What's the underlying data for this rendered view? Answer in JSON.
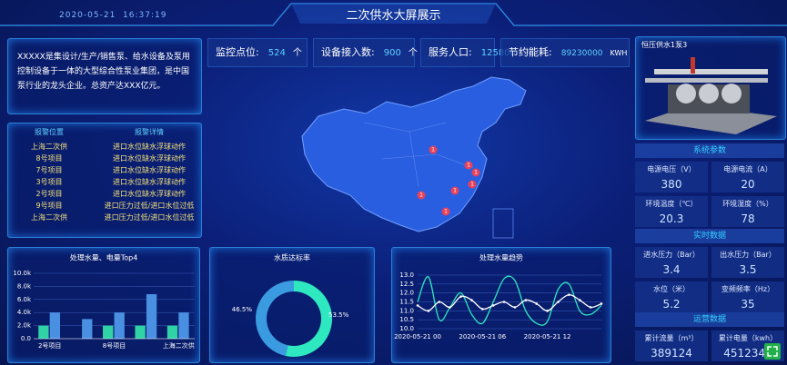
{
  "header": {
    "date": "2020-05-21",
    "time": "16:37:19",
    "title": "二次供水大屏展示"
  },
  "intro": "XXXXX是集设计/生产/销售泵、给水设备及泵用控制设备于一体的大型综合性泵业集团，是中国泵行业的龙头企业。总资产达XXX亿元。",
  "stats": [
    {
      "label": "监控点位:",
      "value": 524,
      "unit": "个"
    },
    {
      "label": "设备接入数:",
      "value": 900,
      "unit": "个"
    },
    {
      "label": "服务人口:",
      "value": 125800,
      "unit": "人"
    },
    {
      "label": "节约能耗:",
      "value": 89230000,
      "unit": "KWH"
    }
  ],
  "alarms": {
    "columns": [
      "报警位置",
      "报警详情"
    ],
    "rows": [
      [
        "上海二次供",
        "进口水位缺水浮球动作"
      ],
      [
        "8号项目",
        "进口水位缺水浮球动作"
      ],
      [
        "7号项目",
        "进口水位缺水浮球动作"
      ],
      [
        "3号项目",
        "进口水位缺水浮球动作"
      ],
      [
        "2号项目",
        "进口水位缺水浮球动作"
      ],
      [
        "9号项目",
        "进口压力过低/进口水位过低"
      ],
      [
        "上海二次供",
        "进口压力过低/进口水位过低"
      ]
    ]
  },
  "map_markers": [
    "1",
    "1",
    "1",
    "1",
    "1",
    "1",
    "1"
  ],
  "device": {
    "name": "恒压供水1泵3"
  },
  "sections": [
    {
      "title": "系统参数",
      "items": [
        {
          "label": "电源电压（V）",
          "value": 380
        },
        {
          "label": "电源电流（A）",
          "value": 20
        },
        {
          "label": "环境温度（℃）",
          "value": 20.3
        },
        {
          "label": "环境湿度（%）",
          "value": 78
        }
      ]
    },
    {
      "title": "实时数据",
      "items": [
        {
          "label": "进水压力（Bar）",
          "value": 3.4
        },
        {
          "label": "出水压力（Bar）",
          "value": 3.5
        },
        {
          "label": "水位（米）",
          "value": 5.2
        },
        {
          "label": "变频频率（Hz）",
          "value": 35
        }
      ]
    },
    {
      "title": "运营数据",
      "items": [
        {
          "label": "累计流量（m³）",
          "value": 389124
        },
        {
          "label": "累计电量（kwh）",
          "value": 4512345
        }
      ]
    }
  ],
  "chart_data": [
    {
      "type": "bar",
      "title": "处理水量、电量Top4",
      "categories": [
        "2号项目",
        null,
        "8号项目",
        null,
        "上海二次供"
      ],
      "series": [
        {
          "color": "#2fd3a6",
          "values": [
            2000,
            null,
            2000,
            2000,
            2000
          ]
        },
        {
          "color": "#4a90e2",
          "values": [
            4000,
            3000,
            4000,
            6800,
            4000
          ]
        }
      ],
      "ylim": [
        0,
        10000
      ],
      "yticks": [
        {
          "value": 0,
          "label": "0.0"
        },
        {
          "value": 2000,
          "label": "2.0k"
        },
        {
          "value": 4000,
          "label": "4.0k"
        },
        {
          "value": 6000,
          "label": "6.0k"
        },
        {
          "value": 8000,
          "label": "8.0k"
        },
        {
          "value": 10000,
          "label": "10.0k"
        }
      ]
    },
    {
      "type": "pie",
      "title": "水质达标率",
      "series": [
        {
          "color": "#2ee8c0",
          "values": [
            53.5
          ],
          "value_labels": [
            "53.5%"
          ]
        },
        {
          "color": "#3b9be0",
          "values": [
            46.5
          ],
          "value_labels": [
            "46.5%"
          ]
        }
      ]
    },
    {
      "type": "line",
      "title": "处理水量趋势",
      "categories": [
        "2020-05-21 00",
        null,
        null,
        null,
        null,
        null,
        "2020-05-21 06",
        null,
        null,
        null,
        null,
        null,
        "2020-05-21 12",
        null,
        null,
        null,
        null,
        null
      ],
      "series": [
        {
          "color": "#2ee8c0",
          "values": [
            11.5,
            12.9,
            10.5,
            11.2,
            12.0,
            10.8,
            10.3,
            11.5,
            12.8,
            12.7,
            11.0,
            10.3,
            10.4,
            12.2,
            12.5,
            11.0,
            10.8,
            11.3
          ]
        },
        {
          "color": "#ffffff",
          "values": [
            11.3,
            11.0,
            11.5,
            11.2,
            11.8,
            11.6,
            11.1,
            11.3,
            11.5,
            11.2,
            11.6,
            11.4,
            11.0,
            11.5,
            11.9,
            11.6,
            11.2,
            11.4
          ]
        }
      ],
      "ylim": [
        10,
        13
      ],
      "yticks": [
        {
          "value": 10,
          "label": "10.0"
        },
        10.5,
        {
          "value": 11,
          "label": "11.0"
        },
        11.5,
        {
          "value": 12,
          "label": "12.0"
        },
        12.5,
        {
          "value": 13,
          "label": "13.0"
        }
      ],
      "grid": true
    }
  ]
}
